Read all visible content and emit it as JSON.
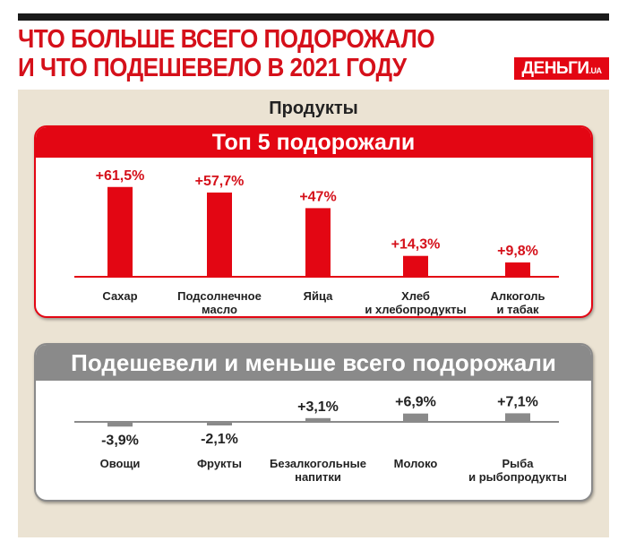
{
  "header": {
    "title_line1": "ЧТО БОЛЬШЕ ВСЕГО ПОДОРОЖАЛО",
    "title_line2": "И ЧТО ПОДЕШЕВЕЛО В 2021 ГОДУ",
    "logo_text": "ДЕНЬГИ",
    "logo_suffix": ".UA"
  },
  "subtitle": "Продукты",
  "colors": {
    "accent": "#e30613",
    "gray": "#8a8a8a",
    "background": "#ebe3d3"
  },
  "chart_data": [
    {
      "type": "bar",
      "title": "Топ 5 подорожали",
      "categories": [
        "Сахар",
        "Подсолнечное масло",
        "Яйца",
        "Хлеб и хлебопродукты",
        "Алкоголь и табак"
      ],
      "category_lines": [
        [
          "Сахар"
        ],
        [
          "Подсолнечное",
          "масло"
        ],
        [
          "Яйца"
        ],
        [
          "Хлеб",
          "и хлебопродукты"
        ],
        [
          "Алкоголь",
          "и табак"
        ]
      ],
      "values": [
        61.5,
        57.7,
        47,
        14.3,
        9.8
      ],
      "data_labels": [
        "+61,5%",
        "+57,7%",
        "+47%",
        "+14,3%",
        "+9,8%"
      ],
      "unit": "%",
      "grid": false
    },
    {
      "type": "bar",
      "title": "Подешевели и меньше всего подорожали",
      "categories": [
        "Овощи",
        "Фрукты",
        "Безалкогольные напитки",
        "Молоко",
        "Рыба и рыбопродукты"
      ],
      "category_lines": [
        [
          "Овощи"
        ],
        [
          "Фрукты"
        ],
        [
          "Безалкогольные",
          "напитки"
        ],
        [
          "Молоко"
        ],
        [
          "Рыба",
          "и рыбопродукты"
        ]
      ],
      "values": [
        -3.9,
        -2.1,
        3.1,
        6.9,
        7.1
      ],
      "data_labels": [
        "-3,9%",
        "-2,1%",
        "+3,1%",
        "+6,9%",
        "+7,1%"
      ],
      "unit": "%",
      "grid": false
    }
  ]
}
